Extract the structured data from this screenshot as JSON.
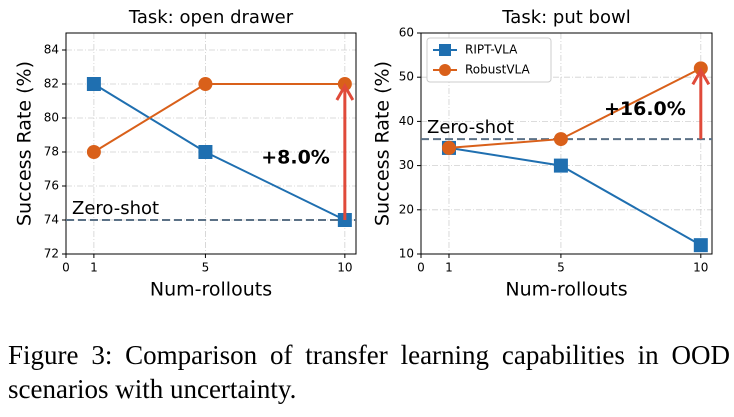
{
  "chart_data": [
    {
      "type": "line",
      "title": "Task: open drawer",
      "x_label": "Num-rollouts",
      "y_label": "Success Rate (%)",
      "x": [
        1,
        5,
        10
      ],
      "xlim": [
        0,
        10.4
      ],
      "xticks": [
        0,
        1,
        5,
        10
      ],
      "ylim": [
        72,
        85
      ],
      "yticks": [
        72,
        74,
        76,
        78,
        80,
        82,
        84
      ],
      "grid": true,
      "series": [
        {
          "name": "RIPT-VLA",
          "color": "#1f6fb0",
          "marker": "square",
          "values": [
            82,
            78,
            74
          ]
        },
        {
          "name": "RobustVLA",
          "color": "#d9601a",
          "marker": "circle",
          "values": [
            78,
            82,
            82
          ]
        }
      ],
      "reference_line": {
        "value": 74,
        "label": "Zero-shot",
        "color": "#5b7186"
      },
      "annotation": {
        "text": "+8.0%",
        "color": "#e04a3a"
      }
    },
    {
      "type": "line",
      "title": "Task: put bowl",
      "x_label": "Num-rollouts",
      "y_label": "Success Rate (%)",
      "x": [
        1,
        5,
        10
      ],
      "xlim": [
        0,
        10.4
      ],
      "xticks": [
        0,
        1,
        5,
        10
      ],
      "ylim": [
        10,
        60
      ],
      "yticks": [
        10,
        20,
        30,
        40,
        50,
        60
      ],
      "grid": true,
      "legend": "upper left",
      "series": [
        {
          "name": "RIPT-VLA",
          "color": "#1f6fb0",
          "marker": "square",
          "values": [
            34,
            30,
            12
          ]
        },
        {
          "name": "RobustVLA",
          "color": "#d9601a",
          "marker": "circle",
          "values": [
            34,
            36,
            52
          ]
        }
      ],
      "reference_line": {
        "value": 36,
        "label": "Zero-shot",
        "color": "#5b7186"
      },
      "annotation": {
        "text": "+16.0%",
        "color": "#e04a3a"
      }
    }
  ],
  "caption": "Figure 3: Comparison of transfer learning capabilities in OOD scenarios with uncertainty."
}
